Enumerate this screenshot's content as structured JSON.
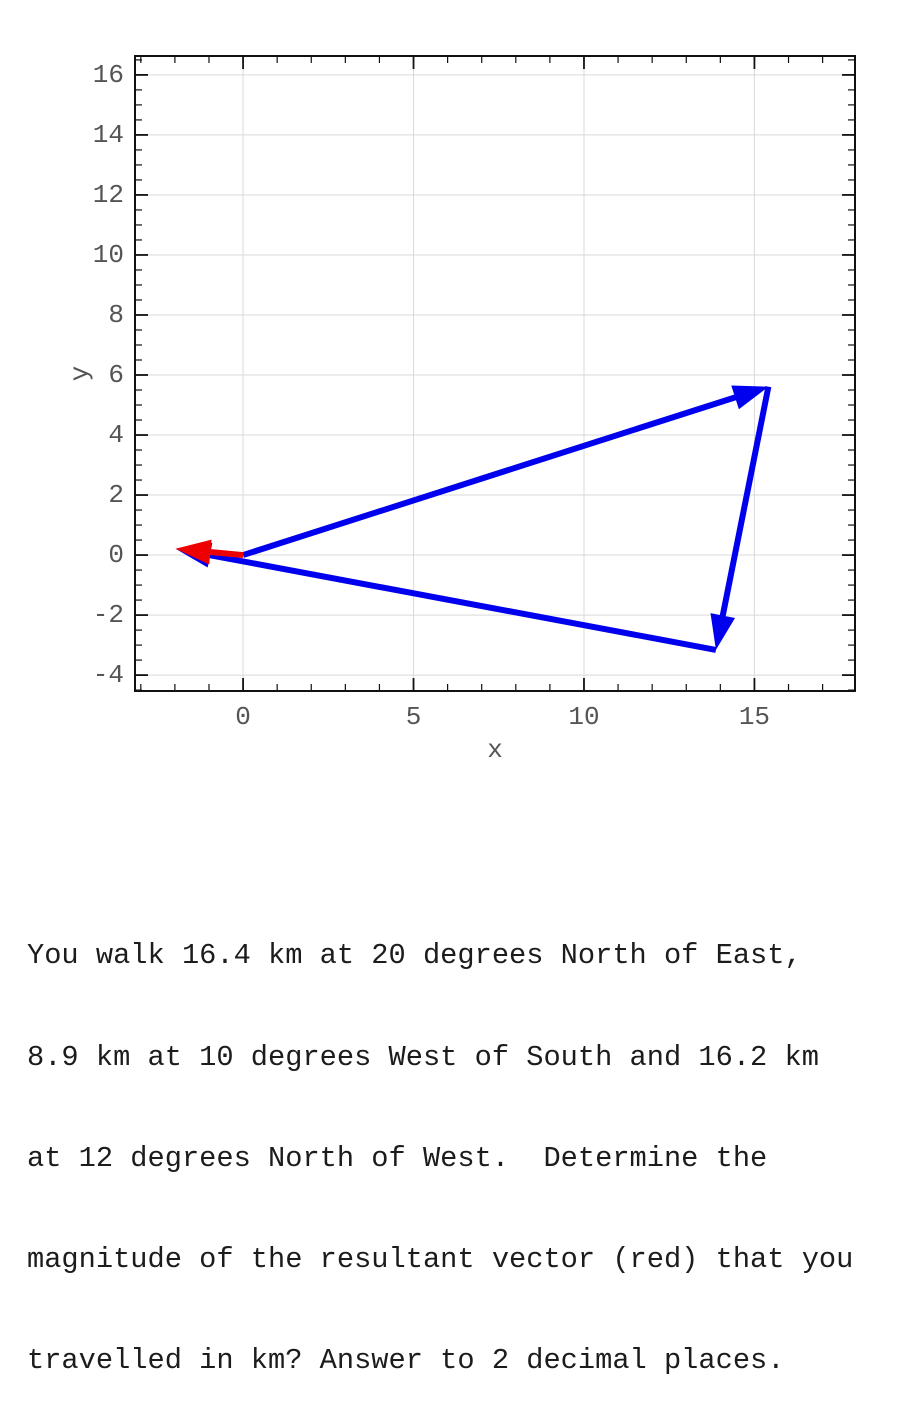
{
  "chart_data": {
    "type": "line",
    "subtype": "vector-quiver-plot",
    "title": "",
    "xlabel": "x",
    "ylabel": "y",
    "xlim": [
      -3.17,
      17.95
    ],
    "ylim": [
      -4.53,
      16.63
    ],
    "xticks": [
      0,
      5,
      10,
      15
    ],
    "yticks": [
      -4,
      -2,
      0,
      2,
      4,
      6,
      8,
      10,
      12,
      14,
      16
    ],
    "minor_x_step": 1,
    "minor_y_step": 0.5,
    "grid": true,
    "legend": "none",
    "colors": {
      "grid": "#d9d9d9",
      "axis": "#111111",
      "tick_label": "#555555",
      "axis_label": "#555555",
      "vector_blue": "#0000ee",
      "resultant_red": "#ee0000"
    },
    "vectors": [
      {
        "name": "leg-1",
        "from": [
          0,
          0
        ],
        "to": [
          15.41,
          5.61
        ],
        "color": "#0000ee"
      },
      {
        "name": "leg-2",
        "from": [
          15.41,
          5.61
        ],
        "to": [
          13.87,
          -3.16
        ],
        "color": "#0000ee"
      },
      {
        "name": "leg-3",
        "from": [
          13.87,
          -3.16
        ],
        "to": [
          -1.98,
          0.21
        ],
        "color": "#0000ee"
      },
      {
        "name": "resultant",
        "from": [
          0,
          0
        ],
        "to": [
          -1.98,
          0.21
        ],
        "color": "#ee0000"
      }
    ]
  },
  "question": {
    "lines": [
      "You walk 16.4 km at 20 degrees North of East,",
      "8.9 km at 10 degrees West of South and 16.2 km",
      "at 12 degrees North of West.  Determine the",
      "magnitude of the resultant vector (red) that you",
      "travelled in km? Answer to 2 decimal places."
    ]
  }
}
